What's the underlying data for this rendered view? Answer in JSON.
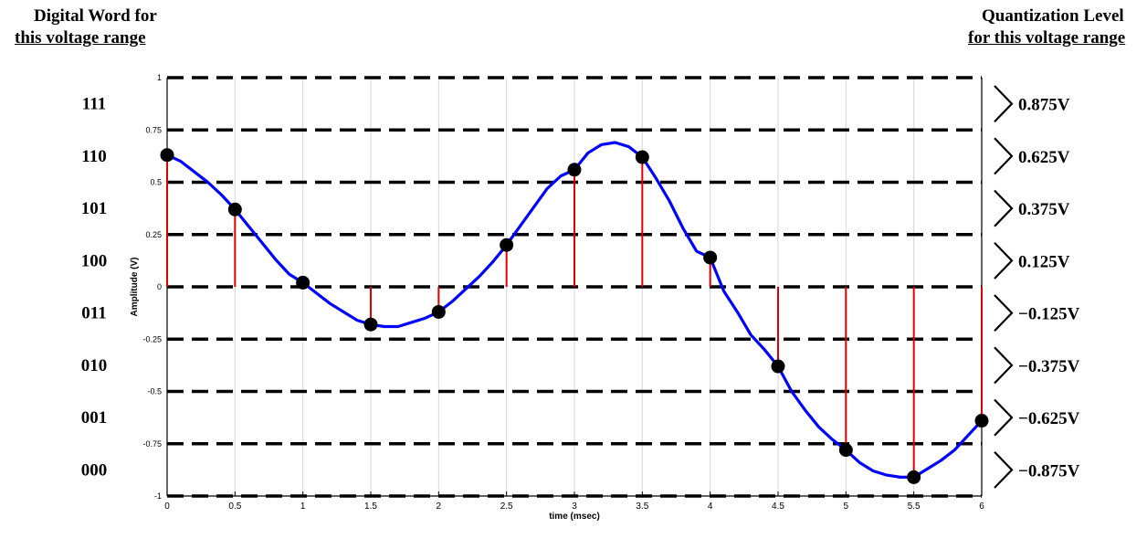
{
  "headers": {
    "left_line1": "Digital Word for",
    "left_line2": "this voltage range",
    "right_line1": "Quantization Level",
    "right_line2": "for this voltage range"
  },
  "chart_data": {
    "type": "line",
    "title": "",
    "xlabel": "time (msec)",
    "ylabel": "Amplitude (V)",
    "xlim": [
      0,
      6
    ],
    "ylim": [
      -1,
      1
    ],
    "x_ticks": [
      "0",
      "0.5",
      "1",
      "1.5",
      "2",
      "2.5",
      "3",
      "3.5",
      "4",
      "4.5",
      "5",
      "5.5",
      "6"
    ],
    "y_ticks": [
      "-1",
      "-0.75",
      "-0.5",
      "-0.25",
      "0",
      "0.25",
      "0.5",
      "0.75",
      "1"
    ],
    "grid": "vertical",
    "series": [
      {
        "kind": "continuous-signal",
        "color": "#0000ff",
        "x": [
          0,
          0.1,
          0.2,
          0.3,
          0.4,
          0.5,
          0.6,
          0.7,
          0.8,
          0.9,
          1.0,
          1.1,
          1.2,
          1.3,
          1.4,
          1.5,
          1.6,
          1.7,
          1.8,
          1.9,
          2.0,
          2.1,
          2.2,
          2.3,
          2.4,
          2.5,
          2.6,
          2.7,
          2.8,
          2.9,
          3.0,
          3.1,
          3.2,
          3.3,
          3.4,
          3.5,
          3.6,
          3.7,
          3.8,
          3.9,
          4.0,
          4.1,
          4.2,
          4.3,
          4.4,
          4.5,
          4.6,
          4.7,
          4.8,
          4.9,
          5.0,
          5.1,
          5.2,
          5.3,
          5.4,
          5.5,
          5.6,
          5.7,
          5.8,
          5.9,
          6.0
        ],
        "y": [
          0.63,
          0.6,
          0.55,
          0.5,
          0.44,
          0.37,
          0.29,
          0.21,
          0.13,
          0.06,
          0.02,
          -0.03,
          -0.08,
          -0.12,
          -0.16,
          -0.18,
          -0.19,
          -0.19,
          -0.17,
          -0.15,
          -0.12,
          -0.07,
          -0.01,
          0.05,
          0.12,
          0.2,
          0.29,
          0.38,
          0.47,
          0.53,
          0.56,
          0.64,
          0.68,
          0.69,
          0.67,
          0.62,
          0.52,
          0.41,
          0.28,
          0.17,
          0.14,
          -0.02,
          -0.12,
          -0.23,
          -0.3,
          -0.38,
          -0.5,
          -0.59,
          -0.67,
          -0.73,
          -0.78,
          -0.84,
          -0.88,
          -0.9,
          -0.91,
          -0.91,
          -0.87,
          -0.83,
          -0.78,
          -0.71,
          -0.64
        ]
      },
      {
        "kind": "samples",
        "color": "#000000",
        "stem_color": "#e00000",
        "x": [
          0,
          0.5,
          1,
          1.5,
          2,
          2.5,
          3,
          3.5,
          4,
          4.5,
          5,
          5.5,
          6
        ],
        "y": [
          0.63,
          0.37,
          0.02,
          -0.18,
          -0.12,
          0.2,
          0.56,
          0.62,
          0.14,
          -0.38,
          -0.78,
          -0.91,
          -0.64
        ]
      }
    ],
    "quantization_boundaries": [
      -1,
      -0.75,
      -0.5,
      -0.25,
      0,
      0.25,
      0.5,
      0.75,
      1
    ],
    "codes": [
      "000",
      "001",
      "010",
      "011",
      "100",
      "101",
      "110",
      "111"
    ],
    "levels": [
      "−0.875V",
      "−0.625V",
      "−0.375V",
      "−0.125V",
      "0.125V",
      "0.375V",
      "0.625V",
      "0.875V"
    ]
  }
}
